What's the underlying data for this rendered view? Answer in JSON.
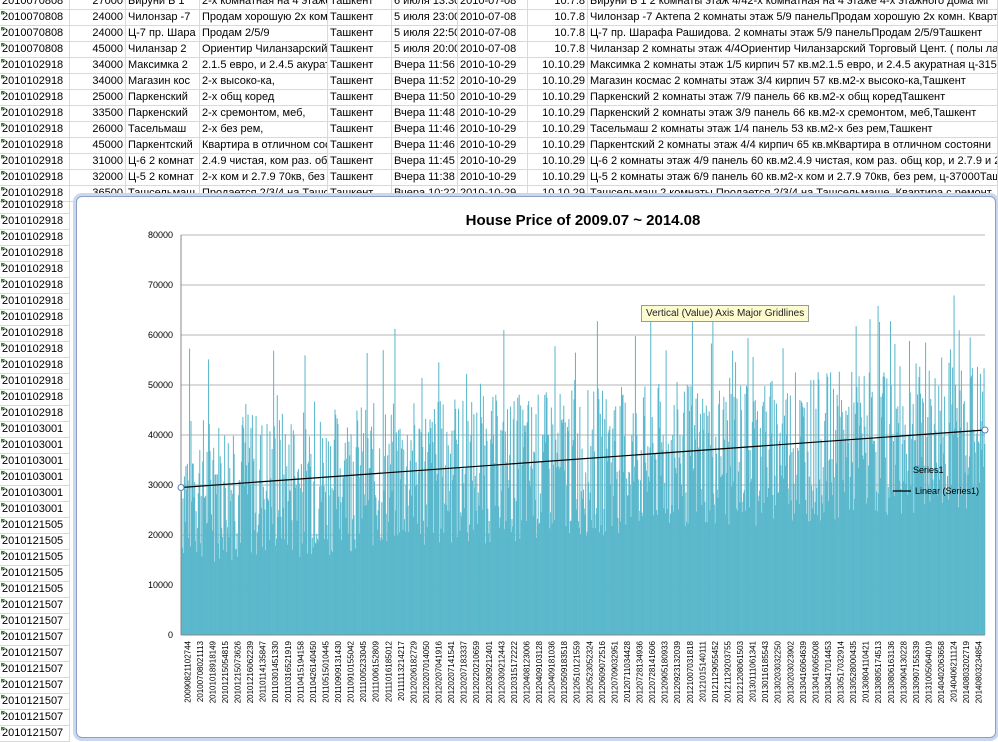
{
  "spreadsheet": {
    "rows": [
      [
        "2010070808",
        "27000",
        "Бируни Б 1",
        "2-х комнатная на 4 этаже",
        "Ташкент",
        "6 июля 13:30",
        "2010-07-08",
        "10.7.8",
        "Бируни Б 1 2 комнаты этаж 4/42-х комнатная на 4 этаже 4-х этажного дома Мг"
      ],
      [
        "2010070808",
        "24000",
        "Чилонзар -7",
        "Продам хорошую 2х комн",
        "Ташкент",
        "5 июля 23:00",
        "2010-07-08",
        "10.7.8",
        "Чилонзар -7 Актепа 2 комнаты этаж 5/9 панельПродам хорошую 2х комн. Кварт"
      ],
      [
        "2010070808",
        "24000",
        "Ц-7 пр. Шара",
        "Продам 2/5/9",
        "Ташкент",
        "5 июля 22:50",
        "2010-07-08",
        "10.7.8",
        "Ц-7 пр. Шарафа Рашидова. 2 комнаты этаж 5/9 панельПродам 2/5/9Ташкент"
      ],
      [
        "2010070808",
        "45000",
        "Чиланзар 2",
        "Ориентир Чиланзарский",
        "Ташкент",
        "5 июля 20:00",
        "2010-07-08",
        "10.7.8",
        "Чиланзар 2 комнаты этаж 4/4Ориентир Чиланзарский Торговый Цент. ( полы ла"
      ],
      [
        "2010102918",
        "34000",
        "Максимка 2",
        "2.1.5 евро, и 2.4.5 акурат",
        "Ташкент",
        "Вчера 11:56",
        "2010-10-29",
        "10.10.29",
        "Максимка 2 комнаты этаж 1/5 кирпич 57 кв.м2.1.5 евро, и 2.4.5 акуратная ц-315"
      ],
      [
        "2010102918",
        "34000",
        "Магазин кос",
        "2-х высоко-ка,",
        "Ташкент",
        "Вчера 11:52",
        "2010-10-29",
        "10.10.29",
        "Магазин космас 2 комнаты этаж 3/4 кирпич 57 кв.м2-х высоко-ка,Ташкент"
      ],
      [
        "2010102918",
        "25000",
        "Паркенский",
        "2-х общ коред",
        "Ташкент",
        "Вчера 11:50",
        "2010-10-29",
        "10.10.29",
        "Паркенский 2 комнаты этаж 7/9 панель 66 кв.м2-х общ коредТашкент"
      ],
      [
        "2010102918",
        "33500",
        "Паркенский",
        "2-х сремонтом, меб,",
        "Ташкент",
        "Вчера 11:48",
        "2010-10-29",
        "10.10.29",
        "Паркенский 2 комнаты этаж 3/9 панель 66 кв.м2-х сремонтом, меб,Ташкент"
      ],
      [
        "2010102918",
        "26000",
        "Тасельмаш",
        "2-х без рем,",
        "Ташкент",
        "Вчера 11:46",
        "2010-10-29",
        "10.10.29",
        "Тасельмаш 2 комнаты этаж 1/4 панель 53 кв.м2-х без рем,Ташкент"
      ],
      [
        "2010102918",
        "45000",
        "Паркентский",
        "Квартира в отличном сос",
        "Ташкент",
        "Вчера 11:46",
        "2010-10-29",
        "10.10.29",
        "Паркентский 2 комнаты этаж 4/4 кирпич 65 кв.мКвартира в отличном состояни"
      ],
      [
        "2010102918",
        "31000",
        "Ц-6 2 комнат",
        "2.4.9 чистая, ком раз. об",
        "Ташкент",
        "Вчера 11:45",
        "2010-10-29",
        "10.10.29",
        "Ц-6 2 комнаты этаж 4/9 панель 60 кв.м2.4.9 чистая, ком раз. общ кор, и 2.7.9 и 2"
      ],
      [
        "2010102918",
        "32000",
        "Ц-5 2 комнат",
        "2-х ком и 2.7.9 70кв, без",
        "Ташкент",
        "Вчера 11:38",
        "2010-10-29",
        "10.10.29",
        "Ц-5 2 комнаты этаж 6/9 панель 60 кв.м2-х ком и 2.7.9 70кв, без рем, ц-37000Таш"
      ],
      [
        "2010102918",
        "36500",
        "Ташсельмаш",
        "Продается 2/3/4 на Ташс",
        "Ташкент",
        "Вчера 10:22",
        "2010-10-29",
        "10.10.29",
        "Ташсельмаш 2 комнаты Продается 2/3/4 на Ташсельмаше. Квартира с ремонт"
      ]
    ],
    "left_ids": [
      "2010102918",
      "2010102918",
      "2010102918",
      "2010102918",
      "2010102918",
      "2010102918",
      "2010102918",
      "2010102918",
      "2010102918",
      "2010102918",
      "2010102918",
      "2010102918",
      "2010102918",
      "2010102918",
      "2010103001",
      "2010103001",
      "2010103001",
      "2010103001",
      "2010103001",
      "2010103001",
      "2010121505",
      "2010121505",
      "2010121505",
      "2010121505",
      "2010121505",
      "2010121507",
      "2010121507",
      "2010121507",
      "2010121507",
      "2010121507",
      "2010121507",
      "2010121507",
      "2010121507",
      "2010121507"
    ]
  },
  "chart_data": {
    "type": "bar",
    "title": "House Price of 2009.07 ~ 2014.08",
    "ylim": [
      0,
      80000
    ],
    "yticks": [
      0,
      10000,
      20000,
      30000,
      40000,
      50000,
      60000,
      70000,
      80000
    ],
    "grid": true,
    "legend_position": "right",
    "series": [
      {
        "name": "Series1",
        "type": "bar",
        "color": "#5bb8cc"
      },
      {
        "name": "Linear (Series1)",
        "type": "trendline",
        "start": 29500,
        "end": 41000,
        "color": "#000000"
      }
    ],
    "categories": [
      "20090821102744",
      "20100708021113",
      "20101018918149",
      "20101215054815",
      "20101215073626",
      "20101216062239",
      "20110114135847",
      "20110301451330",
      "20110316521919",
      "20110415194158",
      "20110426140450",
      "20110515010445",
      "20110909131430",
      "20110910155042",
      "20111005233045",
      "20111006152809",
      "20111016185012",
      "20111113214217",
      "20120206182729",
      "20120207014050",
      "20120207041916",
      "20120207141541",
      "20120207183337",
      "20120220210659",
      "20120309212401",
      "20120309212443",
      "20120315172222",
      "20120408123006",
      "20120409103128",
      "20120409181036",
      "20120509183518",
      "20120510121559",
      "20120523052324",
      "20120609072516",
      "20120709032951",
      "20120711034428",
      "20120728134936",
      "20120728141606",
      "20120905180933",
      "20120923132039",
      "20121007031818",
      "20121015140111",
      "20121129055452",
      "20121129203755",
      "20121208061503",
      "20130111061341",
      "20130116185543",
      "20130203032250",
      "20130203023902",
      "20130416064639",
      "20130416065008",
      "20130417014453",
      "20130517032914",
      "20130528000435",
      "20130804110421",
      "20130805174513",
      "20130806163136",
      "20130904130228",
      "20130907155339",
      "20131005064019",
      "20140402063658",
      "20140406211124",
      "20140803202719",
      "20140803234854"
    ],
    "series_summary": "Dense bar series of several thousand listings; values range roughly 12000 to 69000"
  },
  "tooltip": {
    "text": "Vertical (Value) Axis Major Gridlines"
  },
  "colors": {
    "bars": "#5bb8cc",
    "grid": "#b5b5b5",
    "frame": "#8aa0c8"
  }
}
